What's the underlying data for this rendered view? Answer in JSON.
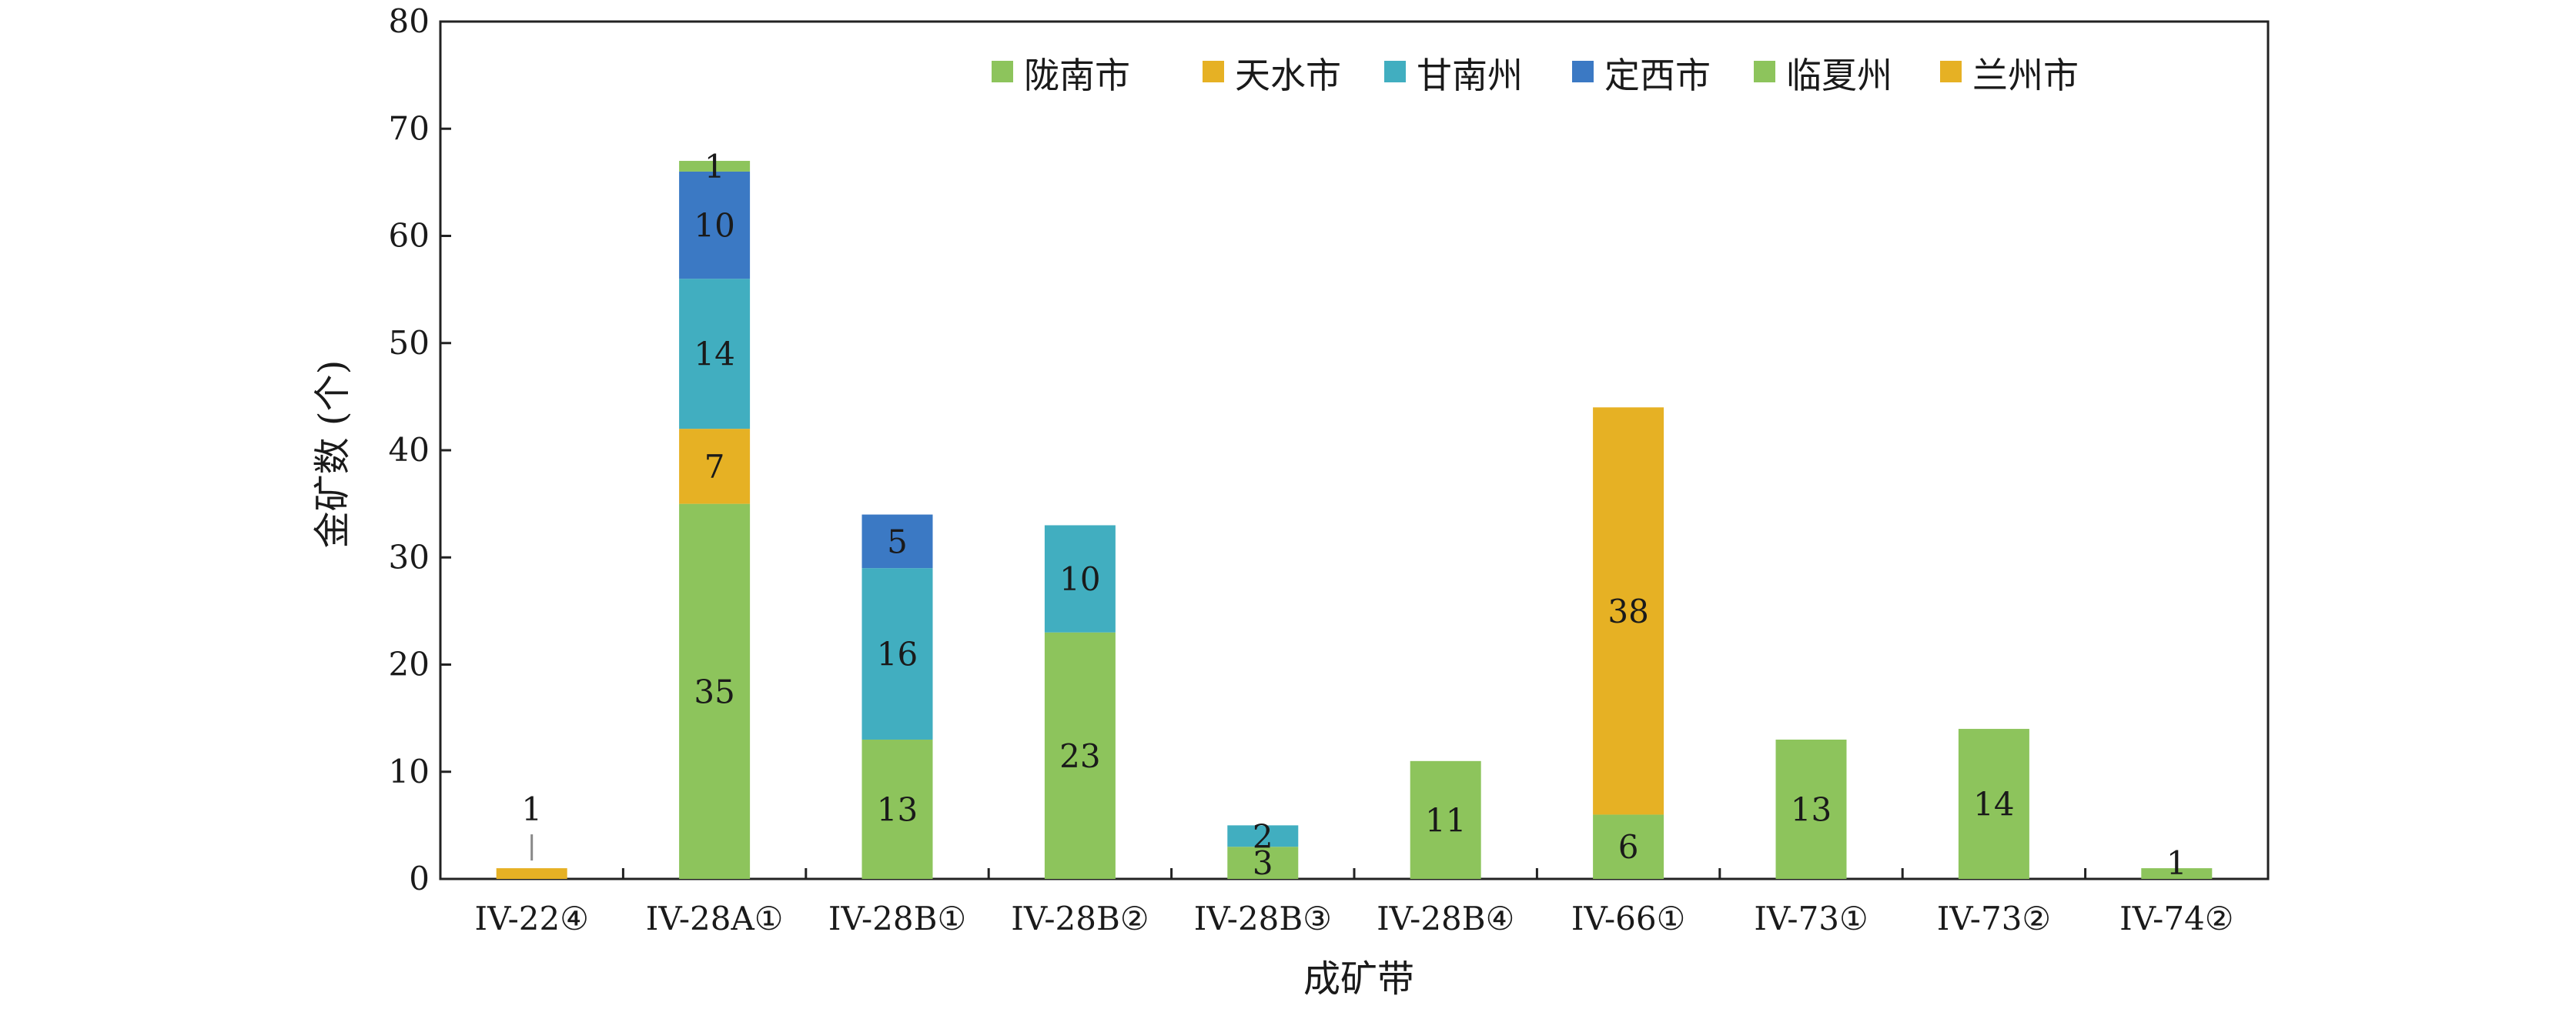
{
  "chart_data": {
    "type": "bar",
    "stacked": true,
    "title": "",
    "xlabel": "成矿带",
    "ylabel": "金矿数 (个)",
    "ylim": [
      0,
      80
    ],
    "yticks": [
      0,
      10,
      20,
      30,
      40,
      50,
      60,
      70,
      80
    ],
    "grid": false,
    "legend_position": "top-right",
    "categories": [
      "IV-22④",
      "IV-28A①",
      "IV-28B①",
      "IV-28B②",
      "IV-28B③",
      "IV-28B④",
      "IV-66①",
      "IV-73①",
      "IV-73②",
      "IV-74②"
    ],
    "series": [
      {
        "name": "陇南市",
        "color": "#8dc45c",
        "values": [
          0,
          35,
          13,
          23,
          3,
          11,
          6,
          13,
          14,
          1
        ]
      },
      {
        "name": "天水市",
        "color": "#e6b124",
        "values": [
          0,
          7,
          0,
          0,
          0,
          0,
          0,
          0,
          0,
          0
        ]
      },
      {
        "name": "甘南州",
        "color": "#41aec0",
        "values": [
          0,
          14,
          16,
          10,
          2,
          0,
          0,
          0,
          0,
          0
        ]
      },
      {
        "name": "定西市",
        "color": "#3b79c4",
        "values": [
          0,
          10,
          5,
          0,
          0,
          0,
          0,
          0,
          0,
          0
        ]
      },
      {
        "name": "临夏州",
        "color": "#8dc45c",
        "values": [
          0,
          1,
          0,
          0,
          0,
          0,
          0,
          0,
          0,
          0
        ]
      },
      {
        "name": "兰州市",
        "color": "#e6b124",
        "values": [
          1,
          0,
          0,
          0,
          0,
          0,
          38,
          0,
          0,
          0
        ]
      }
    ]
  }
}
